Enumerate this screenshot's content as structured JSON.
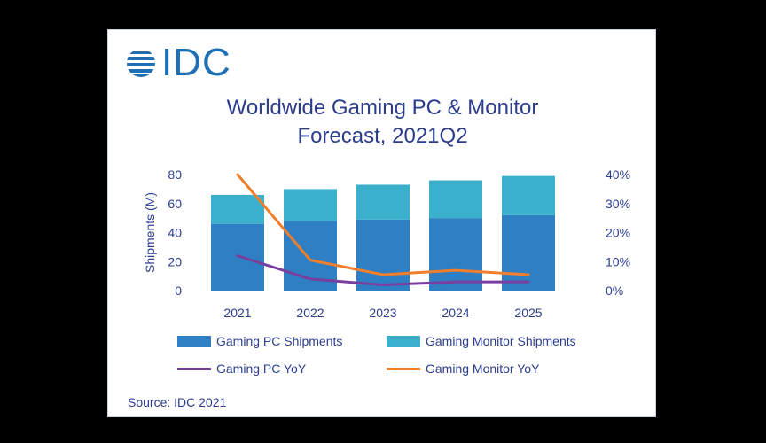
{
  "logo": {
    "text": "IDC"
  },
  "title_line1": "Worldwide Gaming PC & Monitor",
  "title_line2": "Forecast, 2021Q2",
  "source": "Source: IDC 2021",
  "colors": {
    "pc_shipments": "#2e7fc4",
    "monitor_shipments": "#3bb0cc",
    "pc_yoy": "#7a3f9e",
    "monitor_yoy": "#ef7f2d",
    "text": "#2c3d8f"
  },
  "chart_data": {
    "type": "bar",
    "stacked": true,
    "title": "Worldwide Gaming PC & Monitor Forecast, 2021Q2",
    "categories": [
      "2021",
      "2022",
      "2023",
      "2024",
      "2025"
    ],
    "ylabel": "Shipments (M)",
    "ylim": [
      0,
      80
    ],
    "yticks": [
      "0",
      "20",
      "40",
      "60",
      "80"
    ],
    "y2lim": [
      0,
      40
    ],
    "y2ticks": [
      "0%",
      "10%",
      "20%",
      "30%",
      "40%"
    ],
    "series": [
      {
        "name": "Gaming PC Shipments",
        "type": "bar",
        "axis": "left",
        "values": [
          46,
          48,
          49,
          50,
          52
        ]
      },
      {
        "name": "Gaming Monitor Shipments",
        "type": "bar",
        "axis": "left",
        "values": [
          20,
          22,
          24,
          26,
          27
        ]
      },
      {
        "name": "Gaming PC YoY",
        "type": "line",
        "axis": "right",
        "values": [
          12,
          4,
          2,
          3,
          3
        ]
      },
      {
        "name": "Gaming Monitor YoY",
        "type": "line",
        "axis": "right",
        "values": [
          40,
          10.5,
          5.5,
          7,
          5.5
        ]
      }
    ],
    "legend_position": "bottom",
    "grid": false
  }
}
